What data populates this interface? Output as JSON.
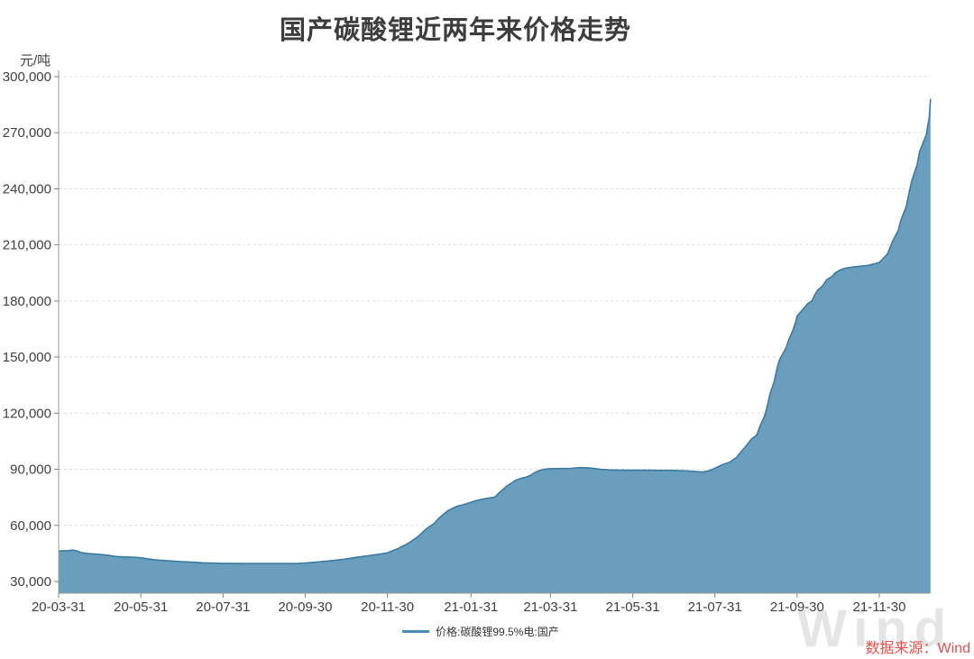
{
  "title": "国产碳酸锂近两年来价格走势",
  "y_unit": "元/吨",
  "legend": {
    "label": "价格:碳酸锂99.5%电:国产"
  },
  "source": "数据来源：Wind",
  "watermark": "Wind",
  "colors": {
    "title": "#3d3d3d",
    "area_fill": "#6A9EBD",
    "line": "#3B7AA1",
    "legend_line": "#4A8FB3",
    "grid": "#DCDCDC",
    "axis": "#999999",
    "tick_text": "#404040",
    "source_text": "#E0514E",
    "watermark": "#E5E5E5",
    "background": "#FFFFFF"
  },
  "chart_data": {
    "type": "area",
    "title": "国产碳酸锂近两年来价格走势",
    "xlabel": "",
    "ylabel": "元/吨",
    "ylim": [
      30000,
      300000
    ],
    "grid": "horizontal-dashed",
    "legend_position": "bottom-center",
    "y_ticks": [
      {
        "value": 30000,
        "label": "30,000"
      },
      {
        "value": 60000,
        "label": "60,000"
      },
      {
        "value": 90000,
        "label": "90,000"
      },
      {
        "value": 120000,
        "label": "120,000"
      },
      {
        "value": 150000,
        "label": "150,000"
      },
      {
        "value": 180000,
        "label": "180,000"
      },
      {
        "value": 210000,
        "label": "210,000"
      },
      {
        "value": 240000,
        "label": "240,000"
      },
      {
        "value": 270000,
        "label": "270,000"
      },
      {
        "value": 300000,
        "label": "300,000"
      }
    ],
    "x_ticks": [
      {
        "date": "2020-03-31",
        "label": "20-03-31"
      },
      {
        "date": "2020-05-31",
        "label": "20-05-31"
      },
      {
        "date": "2020-07-31",
        "label": "20-07-31"
      },
      {
        "date": "2020-09-30",
        "label": "20-09-30"
      },
      {
        "date": "2020-11-30",
        "label": "20-11-30"
      },
      {
        "date": "2021-01-31",
        "label": "21-01-31"
      },
      {
        "date": "2021-03-31",
        "label": "21-03-31"
      },
      {
        "date": "2021-05-31",
        "label": "21-05-31"
      },
      {
        "date": "2021-07-31",
        "label": "21-07-31"
      },
      {
        "date": "2021-09-30",
        "label": "21-09-30"
      },
      {
        "date": "2021-11-30",
        "label": "21-11-30"
      }
    ],
    "series": [
      {
        "name": "价格:碳酸锂99.5%电:国产",
        "points": [
          [
            "2020-03-31",
            46300
          ],
          [
            "2020-04-07",
            46500
          ],
          [
            "2020-04-11",
            46800
          ],
          [
            "2020-04-14",
            46200
          ],
          [
            "2020-04-17",
            45400
          ],
          [
            "2020-04-22",
            44900
          ],
          [
            "2020-04-28",
            44600
          ],
          [
            "2020-05-06",
            44100
          ],
          [
            "2020-05-12",
            43400
          ],
          [
            "2020-05-19",
            43100
          ],
          [
            "2020-05-26",
            42900
          ],
          [
            "2020-05-31",
            42700
          ],
          [
            "2020-06-05",
            42100
          ],
          [
            "2020-06-11",
            41500
          ],
          [
            "2020-06-18",
            41200
          ],
          [
            "2020-06-24",
            40900
          ],
          [
            "2020-06-30",
            40600
          ],
          [
            "2020-07-08",
            40300
          ],
          [
            "2020-07-16",
            40000
          ],
          [
            "2020-07-24",
            39800
          ],
          [
            "2020-07-31",
            39700
          ],
          [
            "2020-08-14",
            39600
          ],
          [
            "2020-08-31",
            39600
          ],
          [
            "2020-09-15",
            39600
          ],
          [
            "2020-09-24",
            39700
          ],
          [
            "2020-09-30",
            39900
          ],
          [
            "2020-10-09",
            40400
          ],
          [
            "2020-10-15",
            40800
          ],
          [
            "2020-10-22",
            41300
          ],
          [
            "2020-10-29",
            41900
          ],
          [
            "2020-11-05",
            42700
          ],
          [
            "2020-11-12",
            43400
          ],
          [
            "2020-11-19",
            44100
          ],
          [
            "2020-11-25",
            44700
          ],
          [
            "2020-11-30",
            45300
          ],
          [
            "2020-12-04",
            46500
          ],
          [
            "2020-12-08",
            47600
          ],
          [
            "2020-12-11",
            48800
          ],
          [
            "2020-12-15",
            50200
          ],
          [
            "2020-12-18",
            51700
          ],
          [
            "2020-12-22",
            53600
          ],
          [
            "2020-12-25",
            55600
          ],
          [
            "2020-12-29",
            58200
          ],
          [
            "2021-01-04",
            61200
          ],
          [
            "2021-01-07",
            63700
          ],
          [
            "2021-01-11",
            66200
          ],
          [
            "2021-01-14",
            67900
          ],
          [
            "2021-01-18",
            69300
          ],
          [
            "2021-01-21",
            70300
          ],
          [
            "2021-01-25",
            71000
          ],
          [
            "2021-01-29",
            71900
          ],
          [
            "2021-02-03",
            73100
          ],
          [
            "2021-02-09",
            74100
          ],
          [
            "2021-02-18",
            75200
          ],
          [
            "2021-02-20",
            76800
          ],
          [
            "2021-02-23",
            78700
          ],
          [
            "2021-02-26",
            80700
          ],
          [
            "2021-03-02",
            82600
          ],
          [
            "2021-03-05",
            84100
          ],
          [
            "2021-03-09",
            85100
          ],
          [
            "2021-03-12",
            85600
          ],
          [
            "2021-03-16",
            86700
          ],
          [
            "2021-03-19",
            88100
          ],
          [
            "2021-03-23",
            89400
          ],
          [
            "2021-03-26",
            90000
          ],
          [
            "2021-03-31",
            90300
          ],
          [
            "2021-04-08",
            90400
          ],
          [
            "2021-04-15",
            90500
          ],
          [
            "2021-04-22",
            90900
          ],
          [
            "2021-04-29",
            90700
          ],
          [
            "2021-05-07",
            90000
          ],
          [
            "2021-05-13",
            89700
          ],
          [
            "2021-05-20",
            89600
          ],
          [
            "2021-05-27",
            89500
          ],
          [
            "2021-05-31",
            89500
          ],
          [
            "2021-06-10",
            89500
          ],
          [
            "2021-06-21",
            89400
          ],
          [
            "2021-06-30",
            89400
          ],
          [
            "2021-07-08",
            89200
          ],
          [
            "2021-07-15",
            88900
          ],
          [
            "2021-07-22",
            88600
          ],
          [
            "2021-07-27",
            89300
          ],
          [
            "2021-07-30",
            90200
          ],
          [
            "2021-08-03",
            91600
          ],
          [
            "2021-08-06",
            92600
          ],
          [
            "2021-08-11",
            93800
          ],
          [
            "2021-08-16",
            96300
          ],
          [
            "2021-08-19",
            99000
          ],
          [
            "2021-08-24",
            103200
          ],
          [
            "2021-08-27",
            106100
          ],
          [
            "2021-08-31",
            108300
          ],
          [
            "2021-09-02",
            112200
          ],
          [
            "2021-09-06",
            118700
          ],
          [
            "2021-09-08",
            124200
          ],
          [
            "2021-09-10",
            130600
          ],
          [
            "2021-09-13",
            136700
          ],
          [
            "2021-09-15",
            143600
          ],
          [
            "2021-09-17",
            148600
          ],
          [
            "2021-09-22",
            155200
          ],
          [
            "2021-09-24",
            159600
          ],
          [
            "2021-09-27",
            164600
          ],
          [
            "2021-09-29",
            169100
          ],
          [
            "2021-09-30",
            172000
          ],
          [
            "2021-10-08",
            178600
          ],
          [
            "2021-10-11",
            180100
          ],
          [
            "2021-10-13",
            183100
          ],
          [
            "2021-10-15",
            185600
          ],
          [
            "2021-10-19",
            188200
          ],
          [
            "2021-10-22",
            191400
          ],
          [
            "2021-10-26",
            193100
          ],
          [
            "2021-10-28",
            194900
          ],
          [
            "2021-11-01",
            196600
          ],
          [
            "2021-11-05",
            197600
          ],
          [
            "2021-11-10",
            198100
          ],
          [
            "2021-11-16",
            198600
          ],
          [
            "2021-11-22",
            199100
          ],
          [
            "2021-11-26",
            199800
          ],
          [
            "2021-11-30",
            200600
          ],
          [
            "2021-12-02",
            202100
          ],
          [
            "2021-12-06",
            205100
          ],
          [
            "2021-12-08",
            208600
          ],
          [
            "2021-12-10",
            212100
          ],
          [
            "2021-12-14",
            217600
          ],
          [
            "2021-12-16",
            223100
          ],
          [
            "2021-12-20",
            230600
          ],
          [
            "2021-12-22",
            237600
          ],
          [
            "2021-12-24",
            244100
          ],
          [
            "2021-12-28",
            252600
          ],
          [
            "2021-12-30",
            260100
          ],
          [
            "2022-01-04",
            269100
          ],
          [
            "2022-01-05",
            274100
          ],
          [
            "2022-01-06",
            277600
          ],
          [
            "2022-01-07",
            288200
          ]
        ]
      }
    ]
  }
}
